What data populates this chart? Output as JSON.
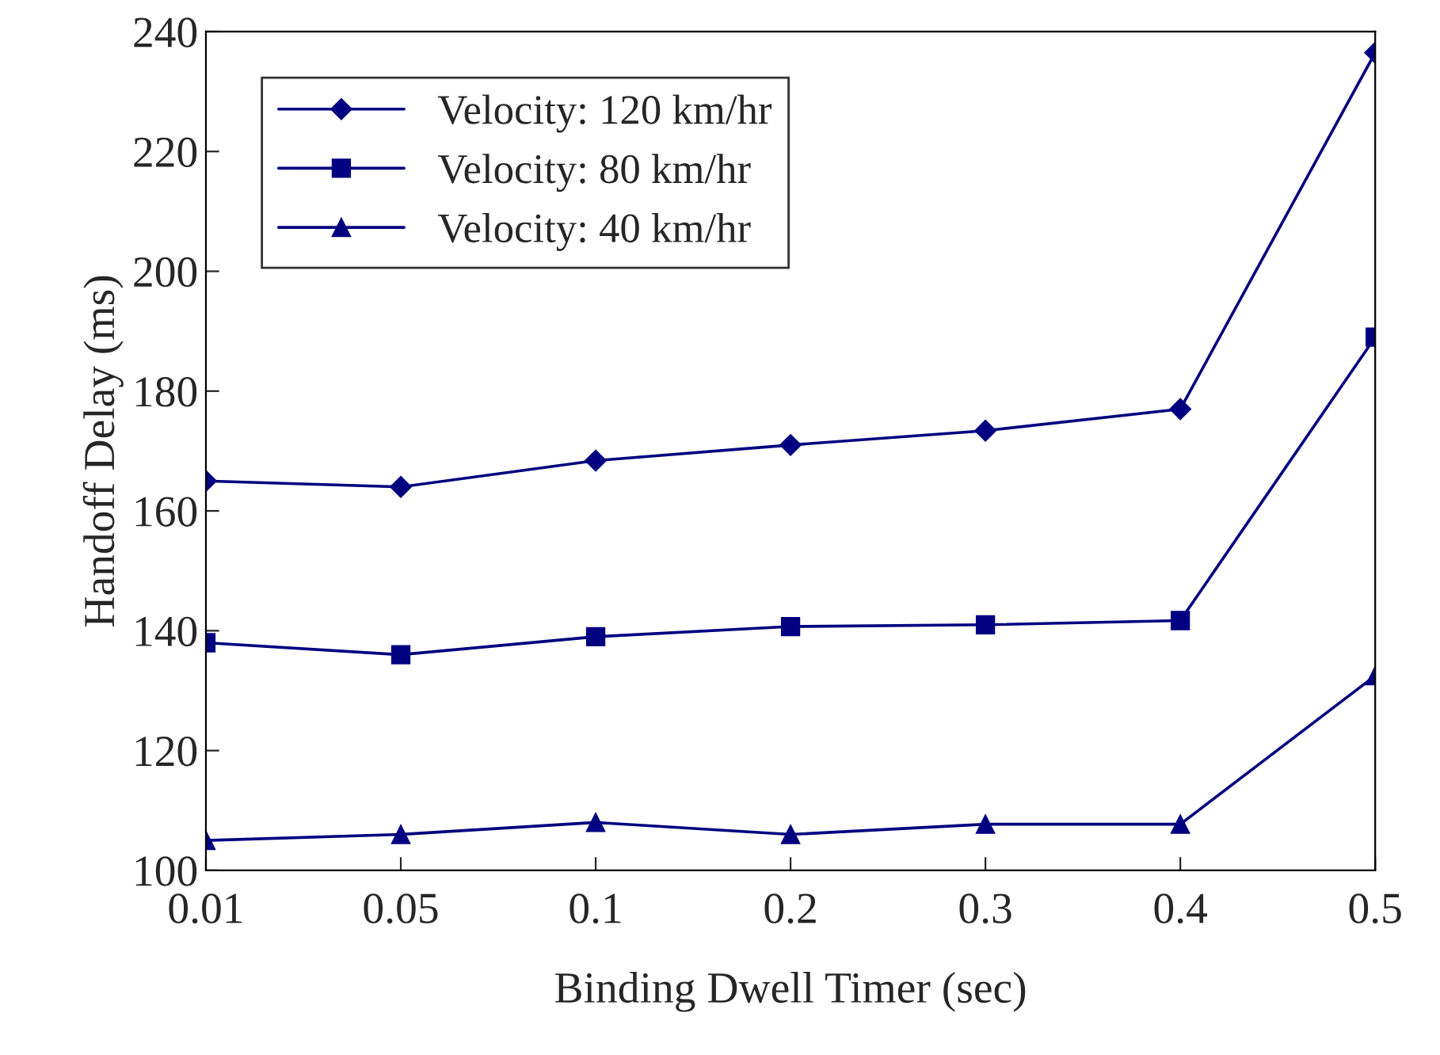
{
  "chart_data": {
    "type": "line",
    "xlabel": "Binding Dwell Timer (sec)",
    "ylabel": "Handoff Delay (ms)",
    "categories": [
      "0.01",
      "0.05",
      "0.1",
      "0.2",
      "0.3",
      "0.4",
      "0.5"
    ],
    "series": [
      {
        "name": "Velocity: 120 km/hr",
        "color": "#000080",
        "marker": "diamond",
        "values": [
          165,
          164,
          168.4,
          171,
          173.4,
          177,
          236.5
        ]
      },
      {
        "name": "Velocity: 80 km/hr",
        "color": "#000080",
        "marker": "square",
        "values": [
          138,
          136,
          139,
          140.7,
          141,
          141.7,
          189
        ]
      },
      {
        "name": "Velocity: 40 km/hr",
        "color": "#000080",
        "marker": "triangle",
        "values": [
          105,
          106,
          108,
          106,
          107.7,
          107.7,
          132.5
        ]
      }
    ],
    "ylim": [
      100,
      240
    ],
    "yticks": [
      100,
      120,
      140,
      160,
      180,
      200,
      220,
      240
    ],
    "grid": false,
    "legend": "top left",
    "line_style": "solid"
  }
}
